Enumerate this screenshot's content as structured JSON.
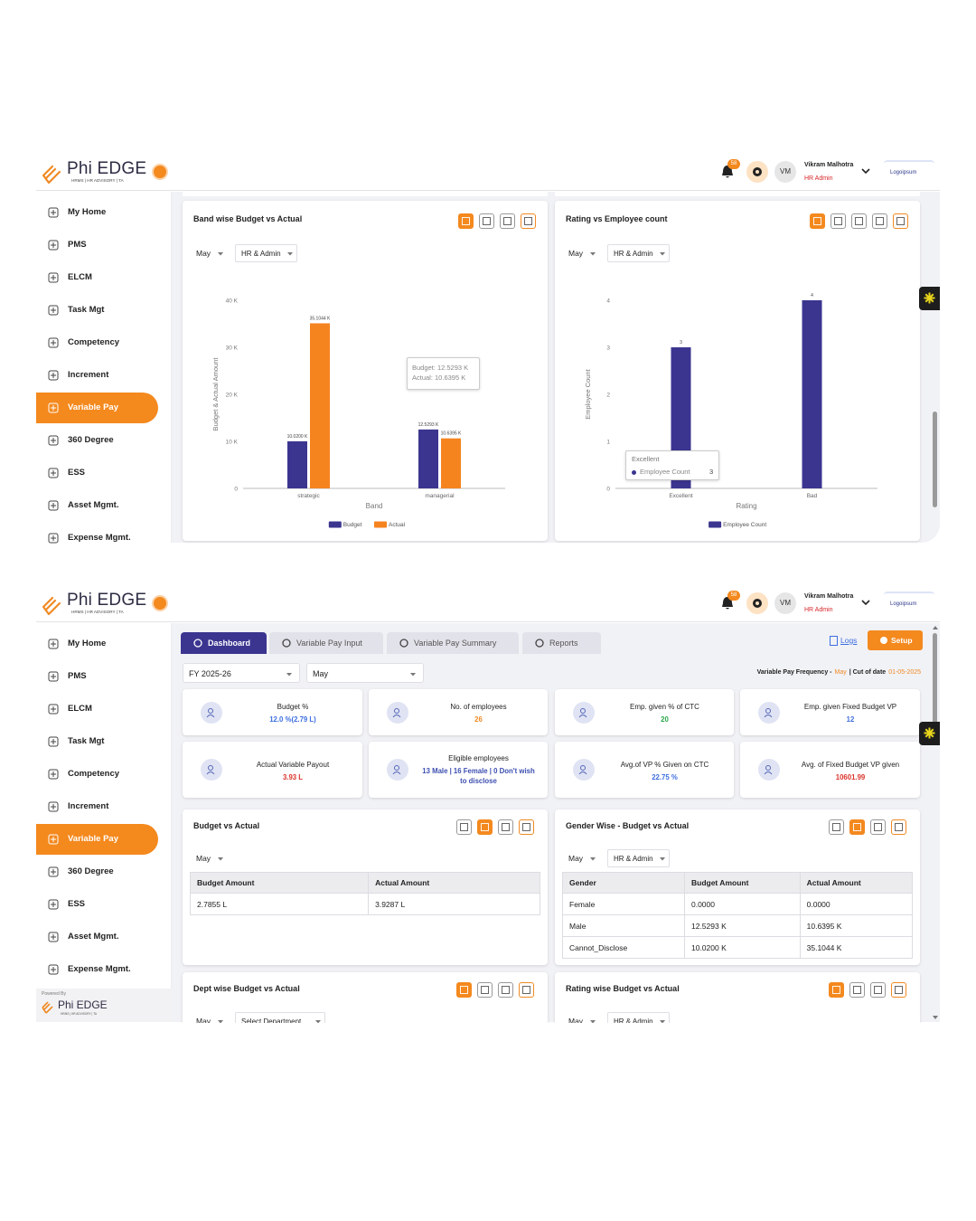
{
  "header": {
    "logo": "Phi EDGE",
    "tagline": "HRMS | HR ADVISORY | TA",
    "notifications": "58",
    "initials": "VM",
    "user_name": "Vikram Malhotra",
    "role": "HR Admin",
    "company": "Logoipsum"
  },
  "sidebar": {
    "items": [
      "My Home",
      "PMS",
      "ELCM",
      "Task Mgt",
      "Competency",
      "Increment",
      "Variable Pay",
      "360 Degree",
      "ESS",
      "Asset Mgmt.",
      "Expense Mgmt."
    ],
    "active": "Variable Pay",
    "powered_by": "Powered By",
    "footer_logo": "Phi EDGE",
    "footer_tagline": "HRMS | HR ADVISORY | TA"
  },
  "screen_1": {
    "chart_data": [
      {
        "type": "bar",
        "title": "Band wise Budget vs Actual",
        "filters": [
          "May",
          "HR & Admin"
        ],
        "x_label": "Band",
        "y_label": "Budget & Actual Amount",
        "categories": [
          "strategic",
          "managerial"
        ],
        "series": [
          {
            "name": "Budget",
            "color": "#3b3590",
            "values": [
              10020,
              12529.3
            ],
            "value_labels": [
              "10.0200 K",
              "12.5293 K"
            ]
          },
          {
            "name": "Actual",
            "color": "#f5841f",
            "values": [
              35104.4,
              10639.5
            ],
            "value_labels": [
              "35.1044 K",
              "10.6395 K"
            ]
          }
        ],
        "ylim": [
          0,
          40000
        ],
        "yticks": [
          0,
          {
            "value": 10000,
            "label": "10 K"
          },
          {
            "value": 20000,
            "label": "20 K"
          },
          {
            "value": 30000,
            "label": "30 K"
          },
          {
            "value": 40000,
            "label": "40 K"
          }
        ],
        "grid": false,
        "legend": "bottom",
        "tooltip": {
          "lines": [
            "Budget: 12.5293 K",
            "Actual: 10.6395 K"
          ]
        }
      },
      {
        "type": "bar",
        "title": "Rating vs Employee count",
        "filters": [
          "May",
          "HR & Admin"
        ],
        "x_label": "Rating",
        "y_label": "Employee Count",
        "categories": [
          "Excellent",
          "Bad"
        ],
        "series": [
          {
            "name": "Employee Count",
            "color": "#3b3590",
            "values": [
              3,
              4
            ]
          }
        ],
        "ylim": [
          0,
          4
        ],
        "yticks": [
          0,
          1,
          2,
          3,
          4
        ],
        "grid": false,
        "legend": "bottom",
        "tooltip": {
          "title": "Excellent",
          "series": "Employee Count",
          "value": "3"
        }
      }
    ]
  },
  "screen_2": {
    "tabs": [
      "Dashboard",
      "Variable Pay Input",
      "Variable Pay Summary",
      "Reports"
    ],
    "active_tab": "Dashboard",
    "logs": "Logs",
    "setup": "Setup",
    "filters": [
      "FY 2025-26",
      "May"
    ],
    "frequency": {
      "label": "Variable Pay Frequency -",
      "value": "May",
      "cutoff_label": "| Cut of date",
      "cutoff": "01-05-2025"
    },
    "kpis": [
      {
        "label": "Budget %",
        "value": "12.0 %(2.79 L)",
        "color": "#3d6fe0"
      },
      {
        "label": "No. of employees",
        "value": "26",
        "color": "#f08a24"
      },
      {
        "label": "Emp. given % of CTC",
        "value": "20",
        "color": "#2aa84a"
      },
      {
        "label": "Emp. given Fixed Budget VP",
        "value": "12",
        "color": "#3d6fe0"
      },
      {
        "label": "Actual Variable Payout",
        "value": "3.93 L",
        "color": "#d9342b"
      },
      {
        "label": "Eligible employees",
        "value": "13 Male | 16 Female | 0 Don't wish to disclose",
        "color": "#3d4fb0"
      },
      {
        "label": "Avg.of VP % Given on CTC",
        "value": "22.75 %",
        "color": "#3d6fe0"
      },
      {
        "label": "Avg. of Fixed Budget VP given",
        "value": "10601.99",
        "color": "#d9342b"
      }
    ],
    "budget_vs_actual": {
      "title": "Budget vs Actual",
      "filters": [
        "May"
      ],
      "table": {
        "headers": [
          "Budget Amount",
          "Actual Amount"
        ],
        "rows": [
          [
            "2.7855 L",
            "3.9287 L"
          ]
        ]
      }
    },
    "gender_wise": {
      "title": "Gender Wise - Budget vs Actual",
      "filters": [
        "May",
        "HR & Admin"
      ],
      "table": {
        "headers": [
          "Gender",
          "Budget Amount",
          "Actual Amount"
        ],
        "rows": [
          [
            "Female",
            "0.0000",
            "0.0000"
          ],
          [
            "Male",
            "12.5293 K",
            "10.6395 K"
          ],
          [
            "Cannot_Disclose",
            "10.0200 K",
            "35.1044 K"
          ]
        ]
      }
    },
    "dept_wise": {
      "title": "Dept wise Budget vs Actual",
      "filters": [
        "May",
        "Select Department"
      ]
    },
    "rating_wise": {
      "title": "Rating wise Budget vs Actual",
      "filters": [
        "May",
        "HR & Admin"
      ]
    }
  }
}
